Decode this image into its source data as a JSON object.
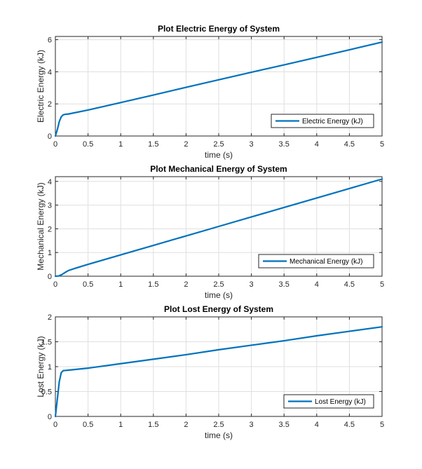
{
  "chart_data": [
    {
      "type": "line",
      "title": "Plot Electric Energy of System",
      "xlabel": "time (s)",
      "ylabel": "Electric Energy (kJ)",
      "xlim": [
        0,
        5
      ],
      "ylim": [
        0,
        6.2
      ],
      "xticks": [
        "0",
        "0.5",
        "1",
        "1.5",
        "2",
        "2.5",
        "3",
        "3.5",
        "4",
        "4.5",
        "5"
      ],
      "yticks": [
        "0",
        "2",
        "4",
        "6"
      ],
      "grid": true,
      "legend_position": "bottom-right",
      "series": [
        {
          "name": "Electric Energy (kJ)",
          "color": "#0072BD",
          "x": [
            0,
            0.03,
            0.06,
            0.09,
            0.12,
            0.15,
            0.2,
            0.5,
            1,
            1.5,
            2,
            2.5,
            3,
            3.5,
            4,
            4.5,
            5
          ],
          "y": [
            0,
            0.4,
            0.9,
            1.2,
            1.32,
            1.35,
            1.37,
            1.62,
            2.08,
            2.55,
            3.03,
            3.5,
            3.97,
            4.43,
            4.9,
            5.37,
            5.85
          ]
        }
      ]
    },
    {
      "type": "line",
      "title": "Plot Mechanical Energy of System",
      "xlabel": "time (s)",
      "ylabel": "Mechanical Energy (kJ)",
      "xlim": [
        0,
        5
      ],
      "ylim": [
        0,
        4.2
      ],
      "xticks": [
        "0",
        "0.5",
        "1",
        "1.5",
        "2",
        "2.5",
        "3",
        "3.5",
        "4",
        "4.5",
        "5"
      ],
      "yticks": [
        "0",
        "1",
        "2",
        "3",
        "4"
      ],
      "grid": true,
      "legend_position": "bottom-right",
      "series": [
        {
          "name": "Mechanical Energy (kJ)",
          "color": "#0072BD",
          "x": [
            0,
            0.05,
            0.1,
            0.15,
            0.2,
            0.3,
            0.5,
            1,
            1.5,
            2,
            2.5,
            3,
            3.5,
            4,
            4.5,
            5
          ],
          "y": [
            0,
            0.01,
            0.07,
            0.16,
            0.24,
            0.33,
            0.5,
            0.9,
            1.3,
            1.7,
            2.1,
            2.5,
            2.9,
            3.3,
            3.7,
            4.1
          ]
        }
      ]
    },
    {
      "type": "line",
      "title": "Plot Lost Energy of System",
      "xlabel": "time (s)",
      "ylabel": "Lost Energy (kJ)",
      "xlim": [
        0,
        5
      ],
      "ylim": [
        0,
        2
      ],
      "xticks": [
        "0",
        "0.5",
        "1",
        "1.5",
        "2",
        "2.5",
        "3",
        "3.5",
        "4",
        "4.5",
        "5"
      ],
      "yticks": [
        "0",
        "0.5",
        "1",
        "1.5",
        "2"
      ],
      "grid": true,
      "legend_position": "bottom-right",
      "series": [
        {
          "name": "Lost Energy (kJ)",
          "color": "#0072BD",
          "x": [
            0,
            0.03,
            0.06,
            0.09,
            0.12,
            0.2,
            0.5,
            1,
            1.5,
            2,
            2.5,
            3,
            3.5,
            4,
            4.5,
            5
          ],
          "y": [
            0,
            0.35,
            0.7,
            0.88,
            0.92,
            0.93,
            0.97,
            1.06,
            1.15,
            1.24,
            1.34,
            1.43,
            1.52,
            1.62,
            1.71,
            1.8
          ]
        }
      ]
    }
  ]
}
